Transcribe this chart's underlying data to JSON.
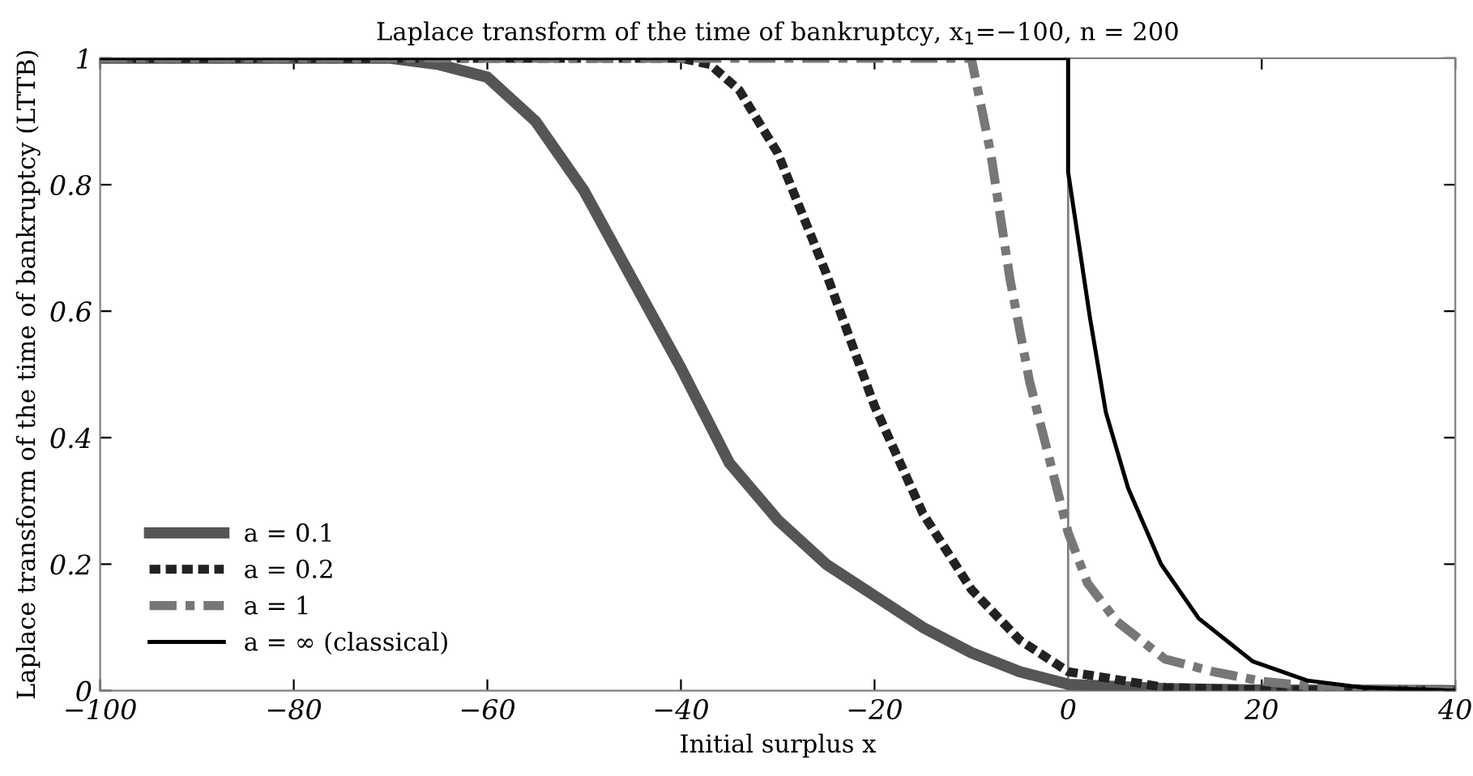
{
  "chart_data": {
    "type": "line",
    "title": "Laplace transform of the time of bankruptcy, x$_{1}$=−100, n = 200",
    "xlabel": "Initial surplus x",
    "ylabel": "Laplace transform of the time of bankruptcy (LTTB)",
    "xlim": [
      -100,
      40
    ],
    "ylim": [
      0,
      1
    ],
    "xticks": [
      -100,
      -80,
      -60,
      -40,
      -20,
      0,
      20,
      40
    ],
    "yticks": [
      0,
      0.2,
      0.4,
      0.6,
      0.8,
      1
    ],
    "grid": false,
    "legend": "bottom left",
    "marker": "none",
    "ref_lines": [
      {
        "axis": "x",
        "value": 0,
        "label": null,
        "color": "#808080"
      }
    ],
    "series": [
      {
        "name": "a = 0.1",
        "color": "#555555",
        "line_style": "solid",
        "x": [
          -100,
          -80,
          -70,
          -65,
          -60,
          -55,
          -50,
          -45,
          -40,
          -37,
          -35,
          -30,
          -25,
          -20,
          -15,
          -10,
          -5,
          0,
          10,
          20,
          40
        ],
        "values": [
          1,
          1,
          1,
          0.99,
          0.97,
          0.9,
          0.79,
          0.65,
          0.51,
          0.42,
          0.36,
          0.27,
          0.2,
          0.15,
          0.1,
          0.06,
          0.03,
          0.01,
          0.003,
          0.001,
          0
        ]
      },
      {
        "name": "a = 0.2",
        "color": "#222222",
        "line_style": "dotted",
        "x": [
          -100,
          -40,
          -37,
          -34,
          -30,
          -25,
          -20,
          -15,
          -10,
          -5,
          0,
          10,
          20,
          40
        ],
        "values": [
          1,
          1,
          0.99,
          0.95,
          0.85,
          0.66,
          0.45,
          0.28,
          0.16,
          0.08,
          0.03,
          0.005,
          0.001,
          0
        ]
      },
      {
        "name": "a = 1",
        "color": "#777777",
        "line_style": "dashdot",
        "x": [
          -100,
          -10,
          -8,
          -6,
          -4,
          -2,
          0,
          2,
          5,
          10,
          15,
          20,
          25,
          30,
          40
        ],
        "values": [
          1,
          1,
          0.85,
          0.65,
          0.49,
          0.37,
          0.25,
          0.17,
          0.11,
          0.05,
          0.03,
          0.015,
          0.007,
          0.003,
          0
        ]
      },
      {
        "name": "a = ∞ (classical)",
        "color": "#000000",
        "line_style": "solid",
        "x": [
          -100,
          0,
          0,
          2.25,
          3.9,
          6.2,
          9.6,
          13.5,
          19.1,
          24.7,
          30.4,
          40
        ],
        "values": [
          1,
          1,
          0.82,
          0.59,
          0.44,
          0.32,
          0.2,
          0.114,
          0.046,
          0.016,
          0.005,
          0
        ]
      }
    ]
  }
}
